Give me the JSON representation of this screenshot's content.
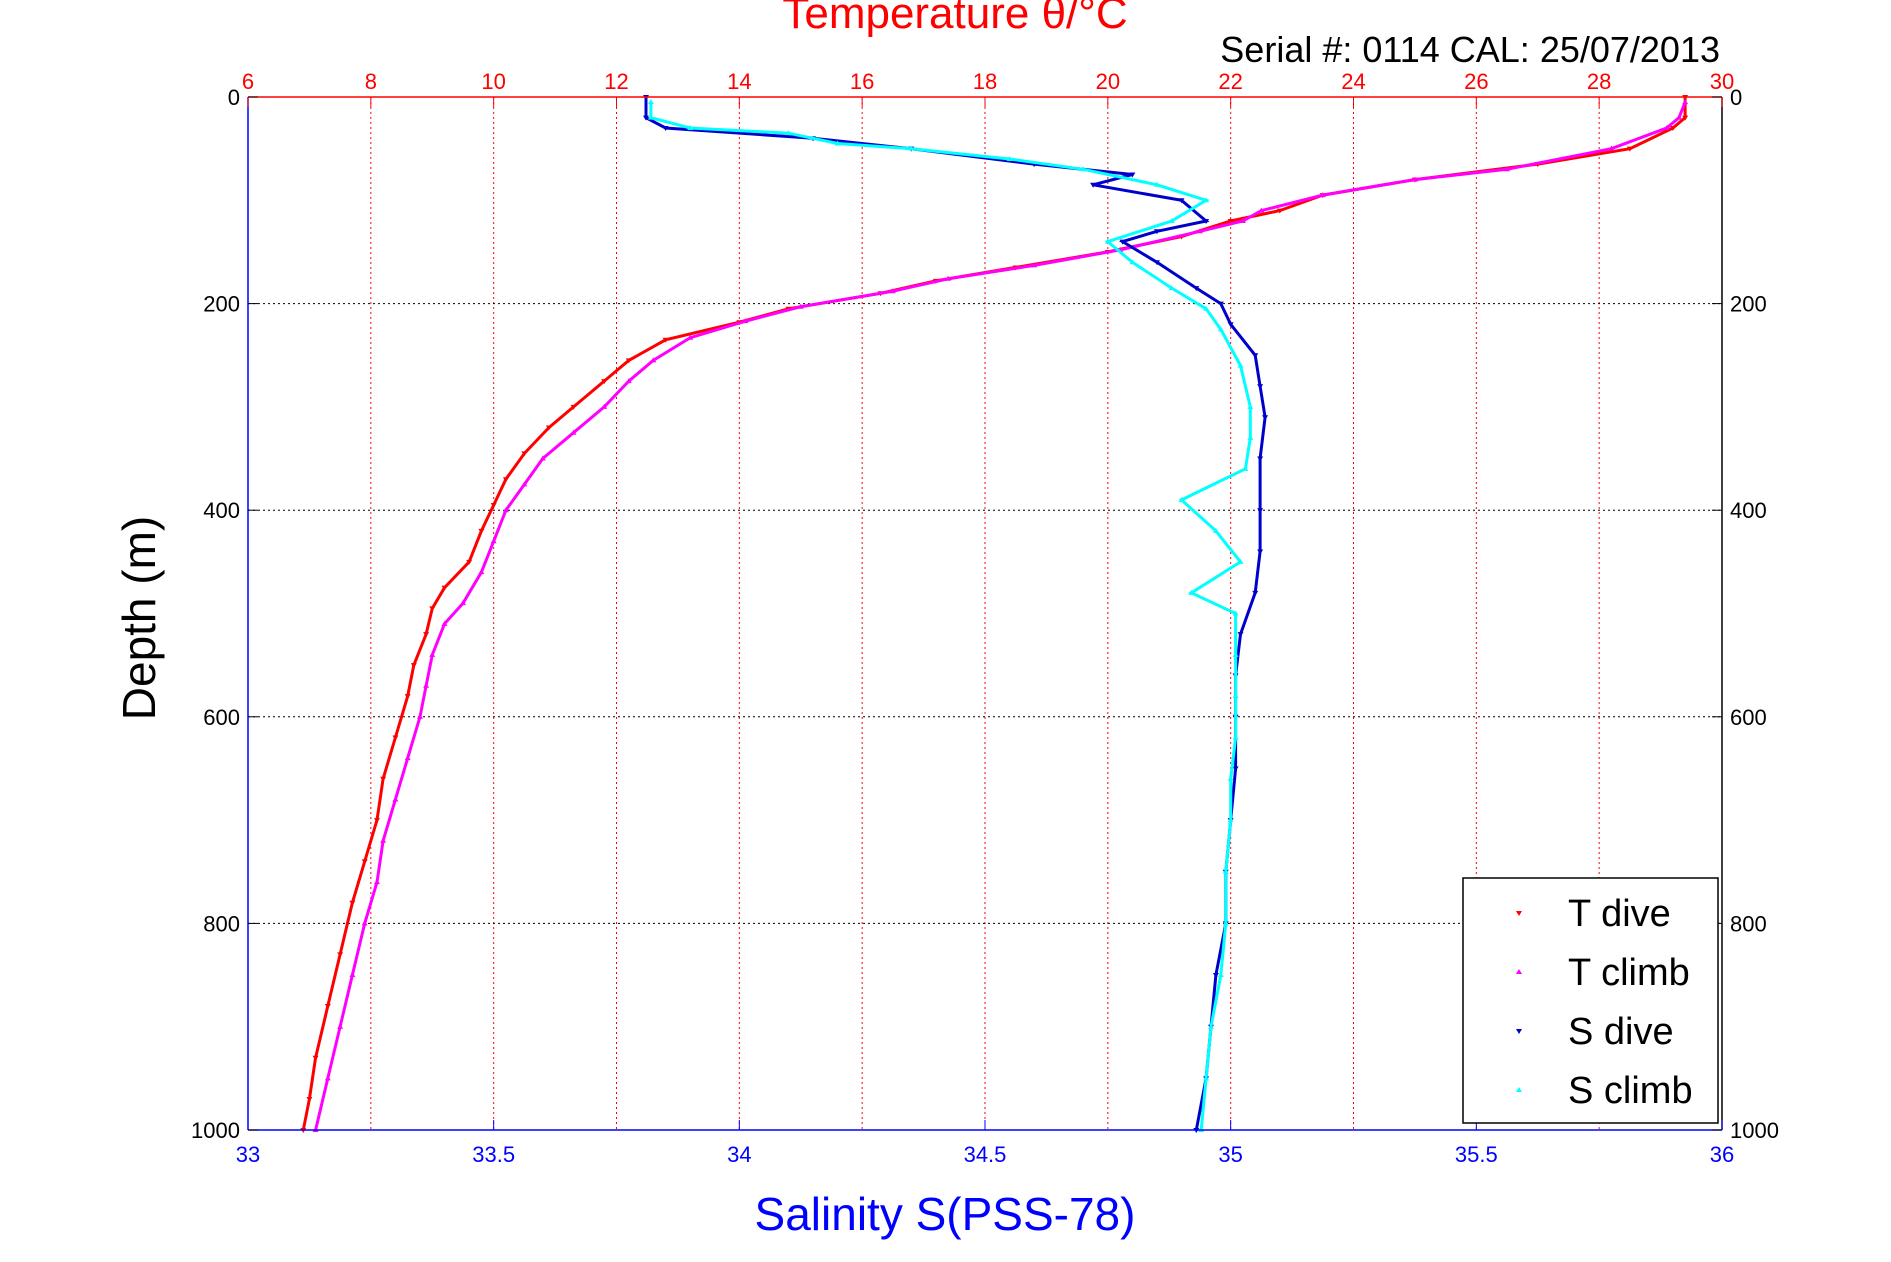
{
  "chart_data": {
    "type": "scatter",
    "title": "Temperature θ/°C",
    "subtitle": "Serial #: 0114  CAL: 25/07/2013",
    "ylabel": "Depth (m)",
    "xlabel_bottom": "Salinity S(PSS-78)",
    "xlabel_top": "Temperature θ/°C",
    "colors": {
      "temperature_axis": "#ff0000",
      "salinity_axis": "#0000ff",
      "T_dive": "#ff0000",
      "T_climb": "#ff00ff",
      "S_dive": "#0000cc",
      "S_climb": "#00ffff",
      "grid_temp": "#ff0000",
      "grid_depth": "#000000"
    },
    "depth_axis": {
      "range": [
        0,
        1000
      ],
      "reversed": true,
      "ticks": [
        0,
        200,
        400,
        600,
        800,
        1000
      ]
    },
    "salinity_axis": {
      "range": [
        33,
        36
      ],
      "ticks": [
        33,
        33.5,
        34,
        34.5,
        35,
        35.5,
        36
      ],
      "position": "bottom"
    },
    "temperature_axis": {
      "range": [
        6,
        30
      ],
      "ticks": [
        6,
        8,
        10,
        12,
        14,
        16,
        18,
        20,
        22,
        24,
        26,
        28,
        30
      ],
      "position": "top"
    },
    "grid": true,
    "legend": {
      "position": "bottom-right",
      "entries": [
        "T dive",
        "T climb",
        "S dive",
        "S climb"
      ]
    },
    "series": [
      {
        "name": "T dive",
        "axis": "temperature",
        "points": [
          [
            29.4,
            0
          ],
          [
            29.4,
            20
          ],
          [
            29.2,
            30
          ],
          [
            28.5,
            50
          ],
          [
            27,
            65
          ],
          [
            25,
            80
          ],
          [
            23.5,
            95
          ],
          [
            22.8,
            110
          ],
          [
            22,
            120
          ],
          [
            21.2,
            135
          ],
          [
            20,
            150
          ],
          [
            18.5,
            165
          ],
          [
            17.2,
            178
          ],
          [
            16.3,
            190
          ],
          [
            14.8,
            205
          ],
          [
            14,
            218
          ],
          [
            12.8,
            235
          ],
          [
            12.2,
            255
          ],
          [
            11.8,
            275
          ],
          [
            11.3,
            300
          ],
          [
            10.9,
            320
          ],
          [
            10.5,
            345
          ],
          [
            10.2,
            370
          ],
          [
            10,
            395
          ],
          [
            9.8,
            420
          ],
          [
            9.6,
            450
          ],
          [
            9.2,
            475
          ],
          [
            9.0,
            495
          ],
          [
            8.9,
            520
          ],
          [
            8.7,
            550
          ],
          [
            8.6,
            580
          ],
          [
            8.4,
            620
          ],
          [
            8.2,
            660
          ],
          [
            8.1,
            700
          ],
          [
            7.9,
            740
          ],
          [
            7.7,
            780
          ],
          [
            7.5,
            830
          ],
          [
            7.3,
            880
          ],
          [
            7.1,
            930
          ],
          [
            7.0,
            970
          ],
          [
            6.9,
            1000
          ]
        ]
      },
      {
        "name": "T climb",
        "axis": "temperature",
        "points": [
          [
            29.4,
            5
          ],
          [
            29.3,
            20
          ],
          [
            29.1,
            30
          ],
          [
            28.2,
            50
          ],
          [
            26.5,
            70
          ],
          [
            25,
            80
          ],
          [
            23.5,
            95
          ],
          [
            22.5,
            110
          ],
          [
            22.2,
            120
          ],
          [
            21.5,
            130
          ],
          [
            20.2,
            148
          ],
          [
            18.8,
            163
          ],
          [
            17.4,
            176
          ],
          [
            16.5,
            188
          ],
          [
            15,
            203
          ],
          [
            14.1,
            217
          ],
          [
            13.2,
            233
          ],
          [
            12.6,
            255
          ],
          [
            12.2,
            275
          ],
          [
            11.8,
            300
          ],
          [
            11.3,
            325
          ],
          [
            10.8,
            350
          ],
          [
            10.5,
            375
          ],
          [
            10.2,
            400
          ],
          [
            10,
            430
          ],
          [
            9.8,
            460
          ],
          [
            9.5,
            490
          ],
          [
            9.2,
            510
          ],
          [
            9.0,
            540
          ],
          [
            8.9,
            570
          ],
          [
            8.8,
            600
          ],
          [
            8.6,
            640
          ],
          [
            8.4,
            680
          ],
          [
            8.2,
            720
          ],
          [
            8.1,
            760
          ],
          [
            7.9,
            800
          ],
          [
            7.7,
            850
          ],
          [
            7.5,
            900
          ],
          [
            7.3,
            950
          ],
          [
            7.1,
            1000
          ]
        ]
      },
      {
        "name": "S dive",
        "axis": "salinity",
        "points": [
          [
            33.81,
            0
          ],
          [
            33.81,
            20
          ],
          [
            33.85,
            30
          ],
          [
            34.15,
            40
          ],
          [
            34.35,
            50
          ],
          [
            34.6,
            65
          ],
          [
            34.8,
            75
          ],
          [
            34.72,
            85
          ],
          [
            34.9,
            100
          ],
          [
            34.95,
            120
          ],
          [
            34.85,
            130
          ],
          [
            34.78,
            140
          ],
          [
            34.85,
            160
          ],
          [
            34.93,
            185
          ],
          [
            34.98,
            200
          ],
          [
            35.0,
            220
          ],
          [
            35.05,
            250
          ],
          [
            35.06,
            280
          ],
          [
            35.07,
            310
          ],
          [
            35.06,
            350
          ],
          [
            35.06,
            400
          ],
          [
            35.06,
            440
          ],
          [
            35.05,
            480
          ],
          [
            35.02,
            520
          ],
          [
            35.01,
            560
          ],
          [
            35.01,
            600
          ],
          [
            35.01,
            650
          ],
          [
            35.0,
            700
          ],
          [
            34.99,
            750
          ],
          [
            34.99,
            800
          ],
          [
            34.97,
            850
          ],
          [
            34.96,
            900
          ],
          [
            34.95,
            950
          ],
          [
            34.93,
            1000
          ]
        ]
      },
      {
        "name": "S climb",
        "axis": "salinity",
        "points": [
          [
            33.82,
            5
          ],
          [
            33.82,
            20
          ],
          [
            33.9,
            30
          ],
          [
            34.1,
            35
          ],
          [
            34.2,
            45
          ],
          [
            34.35,
            50
          ],
          [
            34.55,
            60
          ],
          [
            34.7,
            70
          ],
          [
            34.85,
            85
          ],
          [
            34.95,
            100
          ],
          [
            34.88,
            120
          ],
          [
            34.75,
            140
          ],
          [
            34.8,
            160
          ],
          [
            34.88,
            185
          ],
          [
            34.95,
            205
          ],
          [
            34.98,
            225
          ],
          [
            35.02,
            260
          ],
          [
            35.04,
            300
          ],
          [
            35.04,
            330
          ],
          [
            35.03,
            360
          ],
          [
            34.9,
            390
          ],
          [
            34.97,
            420
          ],
          [
            35.02,
            450
          ],
          [
            34.92,
            480
          ],
          [
            35.01,
            500
          ],
          [
            35.01,
            540
          ],
          [
            35.01,
            580
          ],
          [
            35.01,
            620
          ],
          [
            35.0,
            660
          ],
          [
            35.0,
            700
          ],
          [
            34.99,
            750
          ],
          [
            34.99,
            800
          ],
          [
            34.98,
            850
          ],
          [
            34.96,
            900
          ],
          [
            34.95,
            950
          ],
          [
            34.94,
            1000
          ]
        ]
      }
    ]
  }
}
